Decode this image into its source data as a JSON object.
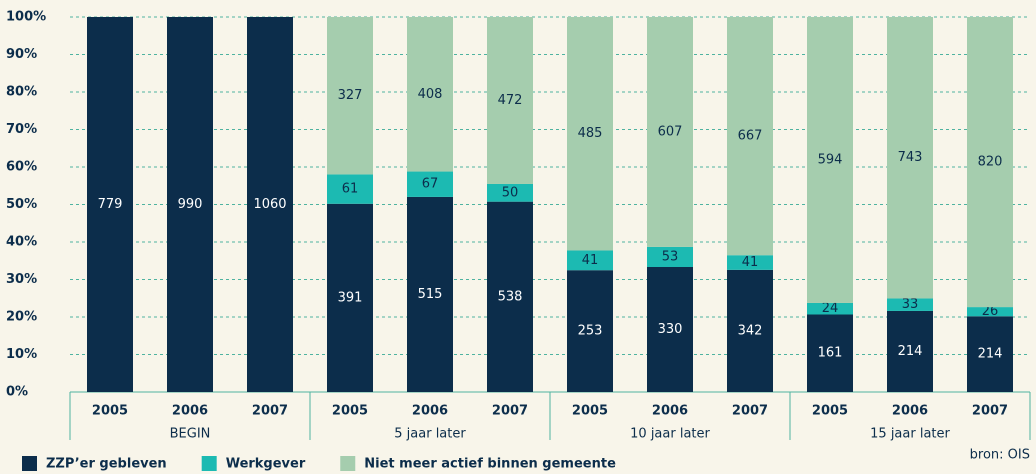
{
  "chart_data": {
    "type": "bar",
    "stack": "percent",
    "categories": [
      "2005",
      "2006",
      "2007",
      "2005",
      "2006",
      "2007",
      "2005",
      "2006",
      "2007",
      "2005",
      "2006",
      "2007"
    ],
    "groups": [
      "BEGIN",
      "5 jaar later",
      "10 jaar later",
      "15 jaar later"
    ],
    "series": [
      {
        "name": "ZZP’er gebleven",
        "color": "#0c2d4b",
        "values": [
          779,
          990,
          1060,
          391,
          515,
          538,
          253,
          330,
          342,
          161,
          214,
          214
        ]
      },
      {
        "name": "Werkgever",
        "color": "#1cbab2",
        "values": [
          null,
          null,
          null,
          61,
          67,
          50,
          41,
          53,
          41,
          24,
          33,
          26
        ]
      },
      {
        "name": "Niet meer actief binnen gemeente",
        "color": "#a5cdae",
        "values": [
          null,
          null,
          null,
          327,
          408,
          472,
          485,
          607,
          667,
          594,
          743,
          820
        ]
      }
    ],
    "ylim": [
      0,
      100
    ],
    "yticks": [
      {
        "value": 0,
        "label": "0%"
      },
      {
        "value": 10,
        "label": "10%"
      },
      {
        "value": 20,
        "label": "20%"
      },
      {
        "value": 30,
        "label": "30%"
      },
      {
        "value": 40,
        "label": "40%"
      },
      {
        "value": 50,
        "label": "50%"
      },
      {
        "value": 60,
        "label": "60%"
      },
      {
        "value": 70,
        "label": "70%"
      },
      {
        "value": 80,
        "label": "80%"
      },
      {
        "value": 90,
        "label": "90%"
      },
      {
        "value": 100,
        "label": "100%"
      }
    ],
    "grid": true,
    "source": "bron: OIS"
  }
}
